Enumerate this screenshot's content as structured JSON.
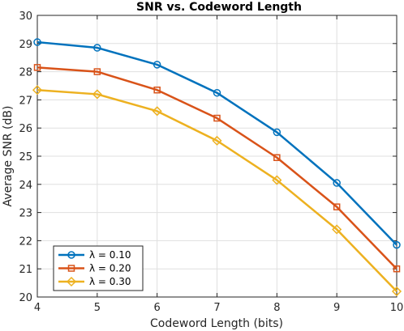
{
  "chart_data": {
    "type": "line",
    "title": "SNR vs. Codeword Length",
    "xlabel": "Codeword Length (bits)",
    "ylabel": "Average SNR (dB)",
    "xlim": [
      4,
      10
    ],
    "ylim": [
      20,
      30
    ],
    "x": [
      4,
      5,
      6,
      7,
      8,
      9,
      10
    ],
    "xticks": [
      "4",
      "5",
      "6",
      "7",
      "8",
      "9",
      "10"
    ],
    "yticks": [
      "20",
      "21",
      "22",
      "23",
      "24",
      "25",
      "26",
      "27",
      "28",
      "29",
      "30"
    ],
    "grid": true,
    "legend_position": "bottom-left",
    "series": [
      {
        "name": "λ = 0.10",
        "marker": "circle",
        "color": "#0072BD",
        "values": [
          29.05,
          28.85,
          28.25,
          27.25,
          25.85,
          24.05,
          21.85
        ]
      },
      {
        "name": "λ = 0.20",
        "marker": "square",
        "color": "#D95319",
        "values": [
          28.15,
          28.0,
          27.35,
          26.35,
          24.95,
          23.2,
          21.0
        ]
      },
      {
        "name": "λ = 0.30",
        "marker": "diamond",
        "color": "#EDB120",
        "values": [
          27.35,
          27.2,
          26.6,
          25.55,
          24.15,
          22.4,
          20.2
        ]
      }
    ]
  }
}
